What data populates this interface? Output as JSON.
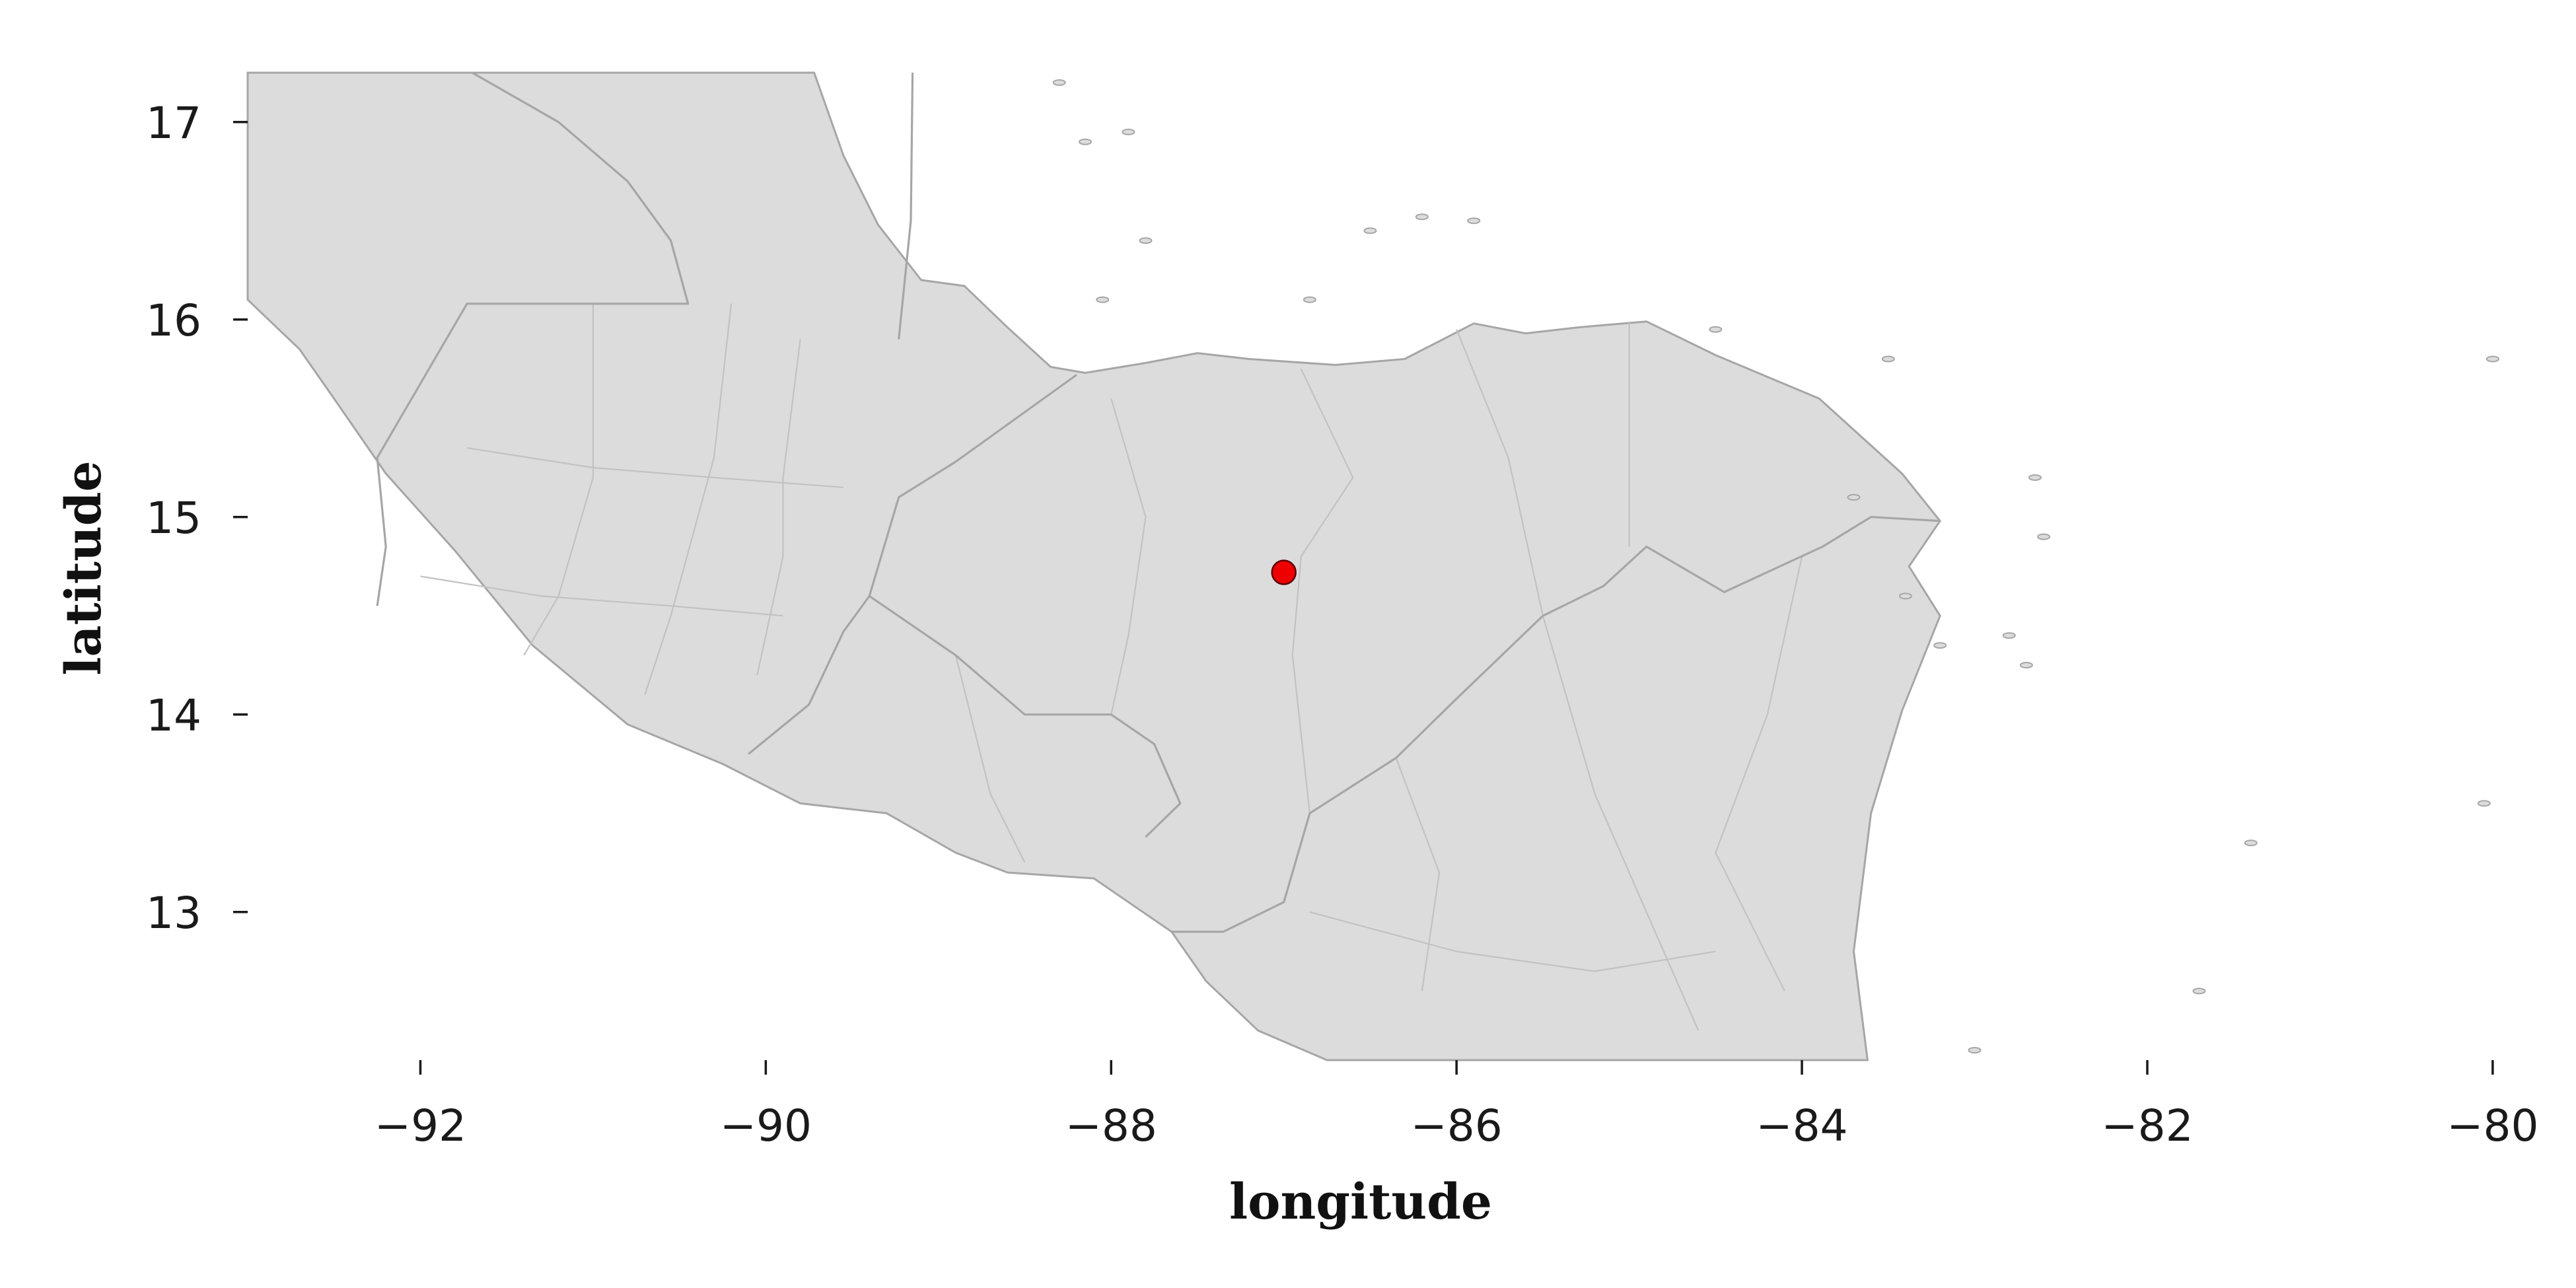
{
  "chart_data": {
    "type": "scatter",
    "title": "",
    "xlabel": "longitude",
    "ylabel": "latitude",
    "xlim": [
      -93.0,
      -79.9
    ],
    "ylim": [
      12.25,
      17.25
    ],
    "x_ticks": [
      -92,
      -90,
      -88,
      -86,
      -84,
      -82,
      -80
    ],
    "x_tick_labels": [
      "−92",
      "−90",
      "−88",
      "−86",
      "−84",
      "−82",
      "−80"
    ],
    "y_ticks": [
      13,
      14,
      15,
      16,
      17
    ],
    "y_tick_labels": [
      "13",
      "14",
      "15",
      "16",
      "17"
    ],
    "grid": false,
    "points": [
      {
        "x": -87.0,
        "y": 14.72
      }
    ],
    "colors": {
      "land": "#dcdcdc",
      "border": "#a6a6a6",
      "internal_border": "#c2c2c2",
      "marker_fill": "#ee0000",
      "marker_edge": "#5a0000",
      "water": "#ffffff"
    },
    "land_outline_lonlat": [
      [
        -93.0,
        16.1
      ],
      [
        -92.7,
        15.85
      ],
      [
        -92.5,
        15.6
      ],
      [
        -92.2,
        15.22
      ],
      [
        -91.8,
        14.83
      ],
      [
        -91.35,
        14.35
      ],
      [
        -90.8,
        13.95
      ],
      [
        -90.25,
        13.75
      ],
      [
        -89.8,
        13.55
      ],
      [
        -89.3,
        13.5
      ],
      [
        -88.9,
        13.3
      ],
      [
        -88.6,
        13.2
      ],
      [
        -88.1,
        13.17
      ],
      [
        -87.9,
        13.05
      ],
      [
        -87.65,
        12.9
      ],
      [
        -87.45,
        12.65
      ],
      [
        -87.15,
        12.4
      ],
      [
        -86.75,
        12.25
      ],
      [
        -83.62,
        12.25
      ],
      [
        -83.7,
        12.8
      ],
      [
        -83.6,
        13.5
      ],
      [
        -83.42,
        14.02
      ],
      [
        -83.2,
        14.5
      ],
      [
        -83.38,
        14.75
      ],
      [
        -83.2,
        14.98
      ],
      [
        -83.42,
        15.22
      ],
      [
        -83.9,
        15.6
      ],
      [
        -84.5,
        15.82
      ],
      [
        -84.9,
        15.99
      ],
      [
        -85.3,
        15.96
      ],
      [
        -85.6,
        15.93
      ],
      [
        -85.9,
        15.98
      ],
      [
        -86.3,
        15.8
      ],
      [
        -86.7,
        15.77
      ],
      [
        -87.2,
        15.8
      ],
      [
        -87.5,
        15.83
      ],
      [
        -87.8,
        15.78
      ],
      [
        -88.15,
        15.73
      ],
      [
        -88.35,
        15.76
      ],
      [
        -88.6,
        15.96
      ],
      [
        -88.85,
        16.17
      ],
      [
        -89.1,
        16.2
      ],
      [
        -89.35,
        16.48
      ],
      [
        -89.55,
        16.83
      ],
      [
        -89.72,
        17.25
      ],
      [
        -93.0,
        17.25
      ]
    ],
    "country_borders_lonlat": [
      [
        [
          -91.7,
          17.25
        ],
        [
          -91.2,
          17.0
        ],
        [
          -90.8,
          16.7
        ],
        [
          -90.55,
          16.4
        ],
        [
          -90.45,
          16.08
        ],
        [
          -91.73,
          16.08
        ],
        [
          -92.25,
          15.3
        ],
        [
          -92.2,
          14.85
        ],
        [
          -92.25,
          14.55
        ]
      ],
      [
        [
          -89.15,
          17.25
        ],
        [
          -89.16,
          16.5
        ],
        [
          -89.23,
          15.9
        ]
      ],
      [
        [
          -88.2,
          15.72
        ],
        [
          -88.9,
          15.28
        ],
        [
          -89.23,
          15.1
        ],
        [
          -89.4,
          14.6
        ],
        [
          -89.55,
          14.42
        ],
        [
          -89.75,
          14.05
        ],
        [
          -90.1,
          13.8
        ]
      ],
      [
        [
          -89.4,
          14.6
        ],
        [
          -88.9,
          14.3
        ],
        [
          -88.5,
          14.0
        ],
        [
          -88.0,
          14.0
        ],
        [
          -87.75,
          13.85
        ],
        [
          -87.6,
          13.55
        ],
        [
          -87.8,
          13.38
        ]
      ],
      [
        [
          -87.65,
          12.9
        ],
        [
          -87.35,
          12.9
        ],
        [
          -87.0,
          13.05
        ],
        [
          -86.85,
          13.5
        ],
        [
          -86.35,
          13.78
        ],
        [
          -86.0,
          14.08
        ],
        [
          -85.5,
          14.5
        ],
        [
          -85.15,
          14.65
        ],
        [
          -84.9,
          14.85
        ],
        [
          -84.45,
          14.62
        ],
        [
          -83.88,
          14.85
        ],
        [
          -83.6,
          15.0
        ],
        [
          -83.2,
          14.98
        ]
      ]
    ],
    "internal_borders_lonlat": [
      [
        [
          -91.0,
          16.08
        ],
        [
          -91.0,
          15.2
        ],
        [
          -91.2,
          14.6
        ],
        [
          -91.4,
          14.3
        ]
      ],
      [
        [
          -90.2,
          16.08
        ],
        [
          -90.3,
          15.3
        ],
        [
          -90.55,
          14.5
        ],
        [
          -90.7,
          14.1
        ]
      ],
      [
        [
          -89.8,
          15.9
        ],
        [
          -89.9,
          15.2
        ],
        [
          -89.9,
          14.8
        ],
        [
          -90.05,
          14.2
        ]
      ],
      [
        [
          -91.73,
          15.35
        ],
        [
          -91.0,
          15.25
        ],
        [
          -90.3,
          15.2
        ],
        [
          -89.55,
          15.15
        ]
      ],
      [
        [
          -92.0,
          14.7
        ],
        [
          -91.3,
          14.6
        ],
        [
          -90.55,
          14.55
        ],
        [
          -89.9,
          14.5
        ]
      ],
      [
        [
          -88.0,
          15.6
        ],
        [
          -87.8,
          15.0
        ],
        [
          -87.9,
          14.4
        ],
        [
          -88.0,
          14.0
        ]
      ],
      [
        [
          -86.9,
          15.75
        ],
        [
          -86.6,
          15.2
        ],
        [
          -86.9,
          14.8
        ],
        [
          -86.95,
          14.3
        ],
        [
          -86.85,
          13.5
        ]
      ],
      [
        [
          -86.0,
          15.95
        ],
        [
          -85.7,
          15.3
        ],
        [
          -85.5,
          14.5
        ]
      ],
      [
        [
          -85.0,
          15.99
        ],
        [
          -85.0,
          14.85
        ]
      ],
      [
        [
          -86.35,
          13.78
        ],
        [
          -86.1,
          13.2
        ],
        [
          -86.2,
          12.6
        ]
      ],
      [
        [
          -85.5,
          14.5
        ],
        [
          -85.2,
          13.6
        ],
        [
          -84.9,
          13.0
        ],
        [
          -84.6,
          12.4
        ]
      ],
      [
        [
          -84.0,
          14.8
        ],
        [
          -84.2,
          14.0
        ],
        [
          -84.5,
          13.3
        ],
        [
          -84.1,
          12.6
        ]
      ],
      [
        [
          -86.85,
          13.0
        ],
        [
          -86.0,
          12.8
        ],
        [
          -85.2,
          12.7
        ],
        [
          -84.5,
          12.8
        ]
      ],
      [
        [
          -88.9,
          14.3
        ],
        [
          -88.7,
          13.6
        ],
        [
          -88.5,
          13.25
        ]
      ]
    ],
    "island_points_lonlat": [
      [
        -86.5,
        16.45
      ],
      [
        -86.2,
        16.52
      ],
      [
        -86.85,
        16.1
      ],
      [
        -85.9,
        16.5
      ],
      [
        -84.5,
        15.95
      ],
      [
        -83.7,
        15.1
      ],
      [
        -83.4,
        14.6
      ],
      [
        -83.2,
        14.35
      ],
      [
        -82.8,
        14.4
      ],
      [
        -82.7,
        14.25
      ],
      [
        -82.65,
        15.2
      ],
      [
        -82.6,
        14.9
      ],
      [
        -81.4,
        13.35
      ],
      [
        -81.7,
        12.6
      ],
      [
        -83.0,
        12.3
      ],
      [
        -83.5,
        15.8
      ],
      [
        -80.0,
        15.8
      ],
      [
        -80.05,
        13.55
      ],
      [
        -88.15,
        16.9
      ],
      [
        -88.3,
        17.2
      ],
      [
        -87.9,
        16.95
      ],
      [
        -88.05,
        16.1
      ],
      [
        -87.8,
        16.4
      ]
    ]
  }
}
